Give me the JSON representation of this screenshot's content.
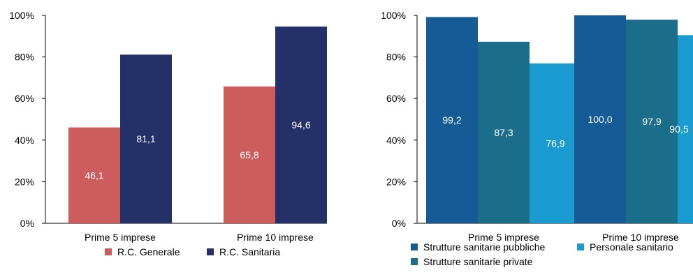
{
  "chart_data": [
    {
      "type": "bar",
      "categories": [
        "Prime 5 imprese",
        "Prime 10 imprese"
      ],
      "series": [
        {
          "name": "R.C. Generale",
          "values": [
            46.1,
            65.8
          ],
          "labels": [
            "46,1",
            "65,8"
          ],
          "color": "#cd5c5c"
        },
        {
          "name": "R.C. Sanitaria",
          "values": [
            81.1,
            94.6
          ],
          "labels": [
            "81,1",
            "94,6"
          ],
          "color": "#243169"
        }
      ],
      "yticks": [
        "0%",
        "20%",
        "40%",
        "60%",
        "80%",
        "100%"
      ],
      "ylim": [
        0,
        100
      ],
      "legend_position": "bottom",
      "grid": false
    },
    {
      "type": "bar",
      "categories": [
        "Prime 5 imprese",
        "Prime 10 imprese"
      ],
      "series": [
        {
          "name": "Strutture sanitarie pubbliche",
          "values": [
            99.2,
            100.0
          ],
          "labels": [
            "99,2",
            "100,0"
          ],
          "color": "#155b96"
        },
        {
          "name": "Strutture sanitarie private",
          "values": [
            87.3,
            97.9
          ],
          "labels": [
            "87,3",
            "97,9"
          ],
          "color": "#1b6e8a"
        },
        {
          "name": "Personale sanitario",
          "values": [
            76.9,
            90.5
          ],
          "labels": [
            "76,9",
            "90,5"
          ],
          "color": "#1a9cd0"
        }
      ],
      "yticks": [
        "0%",
        "20%",
        "40%",
        "60%",
        "80%",
        "100%"
      ],
      "ylim": [
        0,
        100
      ],
      "legend_position": "bottom",
      "grid": false
    }
  ]
}
